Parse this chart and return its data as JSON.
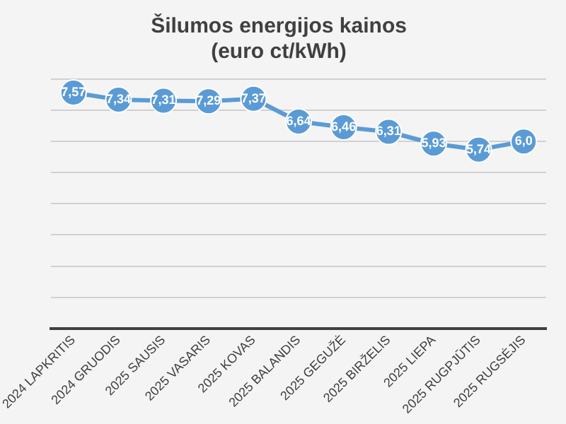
{
  "chart_data": {
    "type": "line",
    "title": "Šilumos energijos kainos\n(euro ct/kWh)",
    "categories": [
      "2024 LAPKRITIS",
      "2024 GRUODIS",
      "2025 SAUSIS",
      "2025 VASARIS",
      "2025 KOVAS",
      "2025 BALANDIS",
      "2025 GEGUŽĖ",
      "2025 BIRŽELIS",
      "2025 LIEPA",
      "2025 RUGPJŪTIS",
      "2025 RUGSĖJIS"
    ],
    "series": [
      {
        "color": "#5b9bd5",
        "values": [
          7.57,
          7.34,
          7.31,
          7.29,
          7.37,
          6.64,
          6.46,
          6.31,
          5.93,
          5.74,
          6.0
        ],
        "value_labels": [
          "7,57",
          "7,34",
          "7,31",
          "7,29",
          "7,37",
          "6,64",
          "6,46",
          "6,31",
          "5,93",
          "5,74",
          "6,0"
        ]
      }
    ],
    "ylim": [
      0,
      8
    ],
    "yticks": [
      {
        "value": 0,
        "label": null
      },
      {
        "value": 1,
        "label": null
      },
      {
        "value": 2,
        "label": null
      },
      {
        "value": 3,
        "label": null
      },
      {
        "value": 4,
        "label": null
      },
      {
        "value": 5,
        "label": null
      },
      {
        "value": 6,
        "label": null
      },
      {
        "value": 7,
        "label": null
      },
      {
        "value": 8,
        "label": null
      }
    ],
    "tick_labels": "x",
    "grid": "y",
    "marker": "circle",
    "line_style": "solid",
    "legend": false
  }
}
